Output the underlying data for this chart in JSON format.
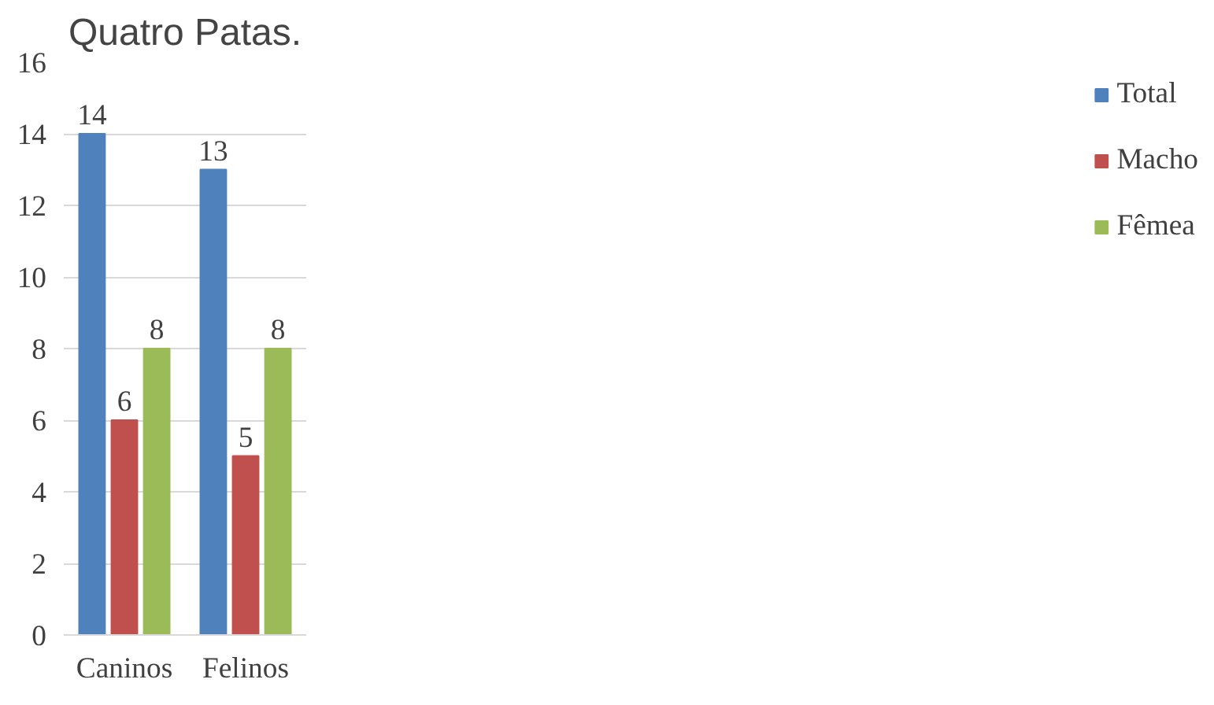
{
  "chart_data": {
    "type": "bar",
    "title": "Quatro Patas.",
    "categories": [
      "Caninos",
      "Felinos"
    ],
    "series": [
      {
        "name": "Total",
        "color": "#4f81bd",
        "values": [
          14,
          13
        ]
      },
      {
        "name": "Macho",
        "color": "#c0504d",
        "values": [
          6,
          5
        ]
      },
      {
        "name": "Fêmea",
        "color": "#9bbb59",
        "values": [
          8,
          8
        ]
      }
    ],
    "ylim": [
      0,
      16
    ],
    "yticks": [
      0,
      2,
      4,
      6,
      8,
      10,
      12,
      14,
      16
    ],
    "grid": "y",
    "legend": "right",
    "data_labels": true
  }
}
